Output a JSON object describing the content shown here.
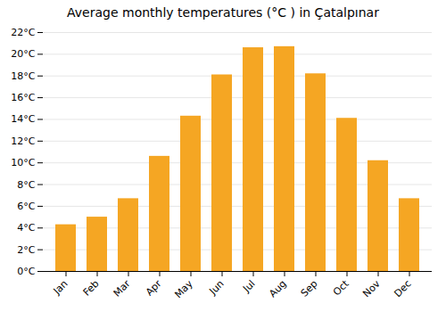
{
  "chart_data": {
    "type": "bar",
    "title": "Average monthly temperatures (°C ) in Çatalpınar",
    "categories": [
      "Jan",
      "Feb",
      "Mar",
      "Apr",
      "May",
      "Jun",
      "Jul",
      "Aug",
      "Sep",
      "Oct",
      "Nov",
      "Dec"
    ],
    "values": [
      4.3,
      5.0,
      6.7,
      10.6,
      14.3,
      18.1,
      20.6,
      20.7,
      18.2,
      14.1,
      10.2,
      6.7
    ],
    "color": "#F5A623",
    "ylim": [
      0,
      22
    ],
    "yticks": [
      {
        "value": 0,
        "label": "0°C"
      },
      {
        "value": 2,
        "label": "2°C"
      },
      {
        "value": 4,
        "label": "4°C"
      },
      {
        "value": 6,
        "label": "6°C"
      },
      {
        "value": 8,
        "label": "8°C"
      },
      {
        "value": 10,
        "label": "10°C"
      },
      {
        "value": 12,
        "label": "12°C"
      },
      {
        "value": 14,
        "label": "14°C"
      },
      {
        "value": 16,
        "label": "16°C"
      },
      {
        "value": 18,
        "label": "18°C"
      },
      {
        "value": 20,
        "label": "20°C"
      },
      {
        "value": 22,
        "label": "22°C"
      }
    ],
    "grid": true
  }
}
